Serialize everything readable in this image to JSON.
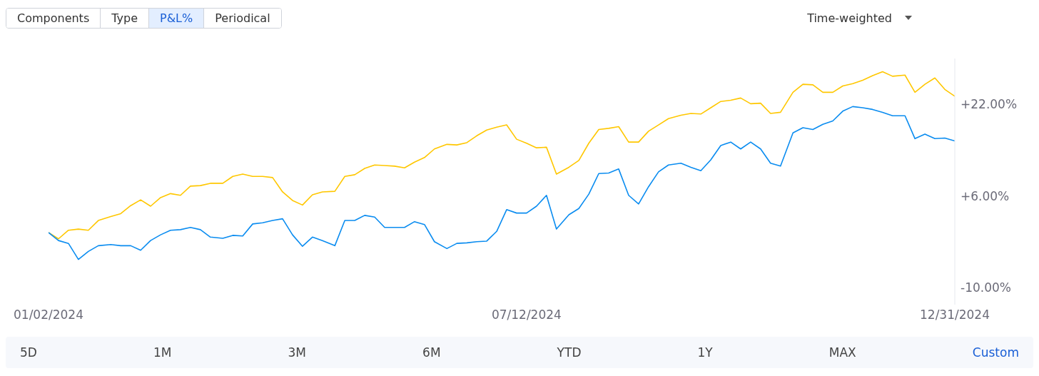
{
  "chart_data": {
    "type": "line",
    "annotations": [
      "Components",
      "Type",
      "P&L%",
      "Periodical",
      "Time-weighted",
      "5D",
      "1M",
      "3M",
      "6M",
      "YTD",
      "1Y",
      "MAX",
      "Custom"
    ],
    "x": [
      "2024-01-02",
      "2024-01-06",
      "2024-01-10",
      "2024-01-14",
      "2024-01-18",
      "2024-01-22",
      "2024-01-27",
      "2024-01-31",
      "2024-02-04",
      "2024-02-08",
      "2024-02-12",
      "2024-02-16",
      "2024-02-20",
      "2024-02-24",
      "2024-02-28",
      "2024-03-03",
      "2024-03-07",
      "2024-03-12",
      "2024-03-16",
      "2024-03-20",
      "2024-03-24",
      "2024-03-28",
      "2024-04-01",
      "2024-04-05",
      "2024-04-09",
      "2024-04-13",
      "2024-04-17",
      "2024-04-21",
      "2024-04-26",
      "2024-04-30",
      "2024-05-04",
      "2024-05-08",
      "2024-05-12",
      "2024-05-16",
      "2024-05-20",
      "2024-05-24",
      "2024-05-28",
      "2024-06-01",
      "2024-06-05",
      "2024-06-10",
      "2024-06-14",
      "2024-06-18",
      "2024-06-22",
      "2024-06-26",
      "2024-06-30",
      "2024-07-04",
      "2024-07-08",
      "2024-07-12",
      "2024-07-16",
      "2024-07-20",
      "2024-07-24",
      "2024-07-29",
      "2024-08-02",
      "2024-08-06",
      "2024-08-10",
      "2024-08-14",
      "2024-08-18",
      "2024-08-22",
      "2024-08-26",
      "2024-08-30",
      "2024-09-03",
      "2024-09-07",
      "2024-09-12",
      "2024-09-16",
      "2024-09-20",
      "2024-09-24",
      "2024-09-28",
      "2024-10-02",
      "2024-10-06",
      "2024-10-10",
      "2024-10-14",
      "2024-10-18",
      "2024-10-22",
      "2024-10-27",
      "2024-10-31",
      "2024-11-04",
      "2024-11-08",
      "2024-11-12",
      "2024-11-16",
      "2024-11-20",
      "2024-11-24",
      "2024-11-28",
      "2024-12-02",
      "2024-12-06",
      "2024-12-11",
      "2024-12-15",
      "2024-12-19",
      "2024-12-23",
      "2024-12-27",
      "2024-12-31"
    ],
    "series": [
      {
        "color": "#ffc700",
        "values": [
          -0.4,
          -1.5,
          0.0,
          0.2,
          0.0,
          1.7,
          2.4,
          2.9,
          4.3,
          5.3,
          4.2,
          5.7,
          6.4,
          6.1,
          7.7,
          7.8,
          8.2,
          8.2,
          9.4,
          9.8,
          9.4,
          9.4,
          9.2,
          6.7,
          5.2,
          4.4,
          6.2,
          6.7,
          6.8,
          9.4,
          9.7,
          10.8,
          11.4,
          11.3,
          11.2,
          10.9,
          11.9,
          12.7,
          14.2,
          15.0,
          14.9,
          15.3,
          16.5,
          17.5,
          18.0,
          18.4,
          15.9,
          15.2,
          14.4,
          14.5,
          9.8,
          11.0,
          12.2,
          15.2,
          17.6,
          17.8,
          18.1,
          15.4,
          15.4,
          17.3,
          18.4,
          19.5,
          20.1,
          20.4,
          20.3,
          21.4,
          22.5,
          22.7,
          23.1,
          22.1,
          22.2,
          20.4,
          20.6,
          24.1,
          25.5,
          25.4,
          24.1,
          24.1,
          25.2,
          25.6,
          26.2,
          27.0,
          27.7,
          26.9,
          27.1,
          24.1,
          25.5,
          26.6,
          24.6,
          23.4
        ]
      },
      {
        "color": "#0a8cf0",
        "values": [
          -0.4,
          -1.8,
          -2.3,
          -5.1,
          -3.7,
          -2.7,
          -2.5,
          -2.7,
          -2.7,
          -3.5,
          -1.8,
          -0.8,
          0.0,
          0.1,
          0.5,
          0.1,
          -1.2,
          -1.4,
          -0.9,
          -1.0,
          1.1,
          1.3,
          1.7,
          2.0,
          -0.8,
          -2.8,
          -1.2,
          -1.8,
          -2.7,
          1.7,
          1.7,
          2.6,
          2.3,
          0.5,
          0.5,
          0.5,
          1.5,
          1.0,
          -2.0,
          -3.2,
          -2.3,
          -2.2,
          -2.0,
          -1.9,
          -0.2,
          3.6,
          3.0,
          3.0,
          4.2,
          6.1,
          0.2,
          2.7,
          3.8,
          6.3,
          9.9,
          10.0,
          10.7,
          6.1,
          4.6,
          7.6,
          10.2,
          11.4,
          11.7,
          11.0,
          10.4,
          12.3,
          14.8,
          15.4,
          14.2,
          15.4,
          14.2,
          11.7,
          11.2,
          17.0,
          17.9,
          17.6,
          18.5,
          19.1,
          20.8,
          21.6,
          21.4,
          21.1,
          20.6,
          20.0,
          20.0,
          16.0,
          16.8,
          16.0,
          16.1,
          15.6
        ]
      }
    ],
    "xlim": [
      "2024-01-02",
      "2024-12-31"
    ],
    "xticks": [
      {
        "value": "2024-01-02",
        "label": "01/02/2024"
      },
      {
        "value": "2024-07-12",
        "label": "07/12/2024"
      },
      {
        "value": "2024-12-31",
        "label": "12/31/2024"
      }
    ],
    "ylim": [
      -13,
      30
    ],
    "yticks": [
      {
        "value": -10,
        "label": "-10.00%"
      },
      {
        "value": 6,
        "label": "+6.00%"
      },
      {
        "value": 22,
        "label": "+22.00%"
      }
    ],
    "grid": false,
    "legend": false,
    "marker": "none",
    "line_style": "solid"
  }
}
